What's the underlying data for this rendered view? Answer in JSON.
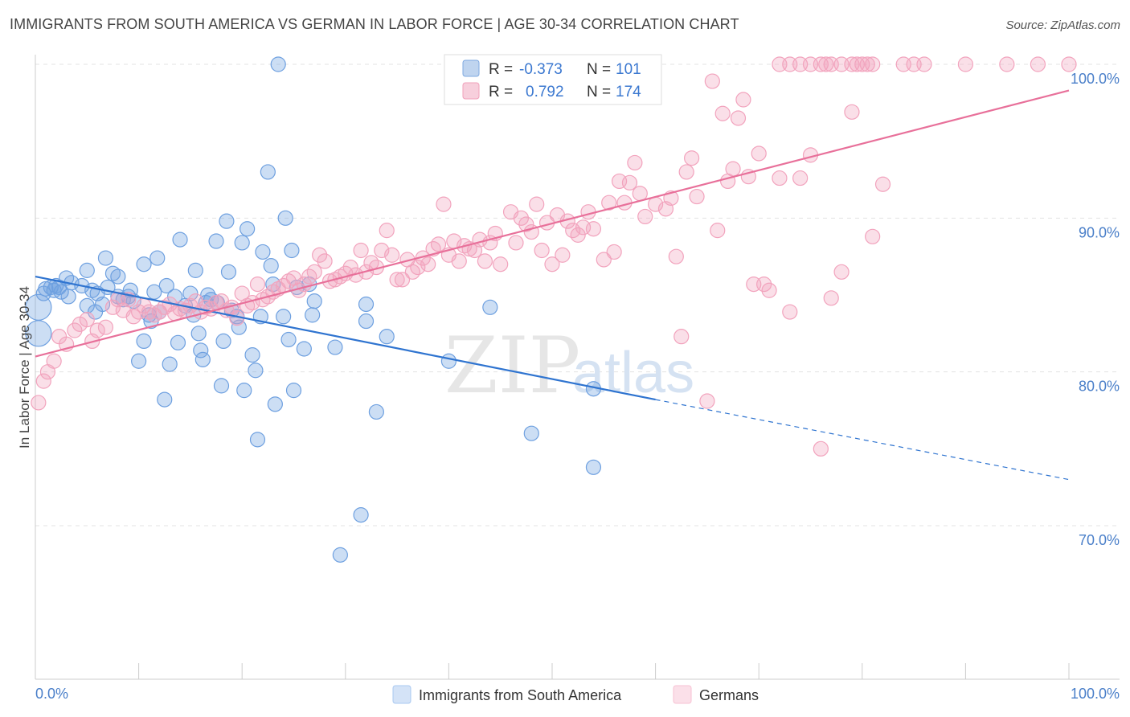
{
  "title": "IMMIGRANTS FROM SOUTH AMERICA VS GERMAN IN LABOR FORCE | AGE 30-34 CORRELATION CHART",
  "source": "Source: ZipAtlas.com",
  "watermark": {
    "zip": "ZIP",
    "atlas": "atlas"
  },
  "legend": {
    "rows": [
      {
        "r_label": "R =",
        "r_value": "-0.373",
        "n_label": "N =",
        "n_value": "101",
        "color": "#7fa9e0"
      },
      {
        "r_label": "R =",
        "r_value": "0.792",
        "n_label": "N =",
        "n_value": "174",
        "color": "#f0a0ba"
      }
    ]
  },
  "chart_data": {
    "type": "scatter",
    "ylabel": "In Labor Force | Age 30-34",
    "xlim": [
      0,
      100
    ],
    "ylim": [
      60,
      102
    ],
    "x_tick_labels": {
      "left": "0.0%",
      "right": "100.0%"
    },
    "y_ticks": [
      {
        "value": 100,
        "label": "100.0%"
      },
      {
        "value": 90,
        "label": "90.0%"
      },
      {
        "value": 80,
        "label": "80.0%"
      },
      {
        "value": 70,
        "label": "70.0%"
      }
    ],
    "grid": true,
    "series": [
      {
        "name": "Immigrants from South America",
        "color": "#6ea0e0",
        "line_color": "#2f74d0",
        "trend": {
          "x0": 0,
          "y0": 86.2,
          "x1": 60,
          "y1": 78.2,
          "dash_to_x": 100,
          "dash_to_y": 73.0
        },
        "points": [
          [
            0.3,
            84.2
          ],
          [
            0.3,
            82.5
          ],
          [
            0.8,
            85.1
          ],
          [
            1.0,
            85.4
          ],
          [
            1.5,
            85.5
          ],
          [
            1.8,
            85.3
          ],
          [
            2.0,
            85.6
          ],
          [
            2.3,
            85.5
          ],
          [
            2.5,
            85.2
          ],
          [
            3,
            86.1
          ],
          [
            3.2,
            84.9
          ],
          [
            3.5,
            85.8
          ],
          [
            4.5,
            85.6
          ],
          [
            5,
            86.6
          ],
          [
            5,
            84.3
          ],
          [
            5.5,
            85.3
          ],
          [
            5.8,
            83.9
          ],
          [
            6,
            85.1
          ],
          [
            6.5,
            84.4
          ],
          [
            6.8,
            87.4
          ],
          [
            7,
            85.5
          ],
          [
            7.5,
            86.4
          ],
          [
            8,
            86.2
          ],
          [
            8,
            84.9
          ],
          [
            8.5,
            84.7
          ],
          [
            9,
            84.9
          ],
          [
            9.2,
            85.3
          ],
          [
            9.5,
            84.6
          ],
          [
            10,
            80.7
          ],
          [
            10.5,
            82.0
          ],
          [
            10.5,
            87.0
          ],
          [
            11,
            83.7
          ],
          [
            11.2,
            83.3
          ],
          [
            11.5,
            85.2
          ],
          [
            11.8,
            87.4
          ],
          [
            12,
            83.9
          ],
          [
            12.5,
            78.2
          ],
          [
            12.7,
            85.6
          ],
          [
            13,
            80.5
          ],
          [
            13.5,
            84.9
          ],
          [
            13.8,
            81.9
          ],
          [
            14,
            88.6
          ],
          [
            14.5,
            84.3
          ],
          [
            15,
            85.1
          ],
          [
            15.3,
            83.7
          ],
          [
            15.5,
            86.6
          ],
          [
            15.8,
            82.5
          ],
          [
            16,
            81.4
          ],
          [
            16.2,
            80.8
          ],
          [
            16.5,
            84.5
          ],
          [
            16.7,
            85.0
          ],
          [
            17,
            84.7
          ],
          [
            17.5,
            88.5
          ],
          [
            17.6,
            84.5
          ],
          [
            18,
            79.1
          ],
          [
            18.2,
            82.0
          ],
          [
            18.5,
            89.8
          ],
          [
            18.7,
            86.5
          ],
          [
            19,
            84.0
          ],
          [
            19.5,
            83.6
          ],
          [
            19.7,
            82.9
          ],
          [
            20,
            88.4
          ],
          [
            20.2,
            78.8
          ],
          [
            20.5,
            89.3
          ],
          [
            21,
            81.1
          ],
          [
            21.3,
            80.1
          ],
          [
            21.5,
            75.6
          ],
          [
            21.8,
            83.6
          ],
          [
            22,
            87.8
          ],
          [
            22.5,
            93.0
          ],
          [
            22.8,
            86.9
          ],
          [
            23,
            85.7
          ],
          [
            23.2,
            77.9
          ],
          [
            23.5,
            100.0
          ],
          [
            24,
            83.6
          ],
          [
            24.2,
            90.0
          ],
          [
            24.5,
            82.1
          ],
          [
            24.8,
            87.9
          ],
          [
            25,
            78.8
          ],
          [
            25.3,
            85.5
          ],
          [
            26,
            81.5
          ],
          [
            26.5,
            85.7
          ],
          [
            26.8,
            83.7
          ],
          [
            27,
            84.6
          ],
          [
            29,
            81.6
          ],
          [
            29.5,
            68.1
          ],
          [
            31.5,
            70.7
          ],
          [
            32,
            83.3
          ],
          [
            32,
            84.4
          ],
          [
            33,
            77.4
          ],
          [
            34,
            82.3
          ],
          [
            40,
            80.7
          ],
          [
            44,
            84.2
          ],
          [
            48,
            76.0
          ],
          [
            54,
            73.8
          ],
          [
            54,
            78.9
          ]
        ]
      },
      {
        "name": "Germans",
        "color": "#f2a3bd",
        "line_color": "#e8709a",
        "trend": {
          "x0": 0,
          "y0": 81.0,
          "x1": 100,
          "y1": 98.3
        },
        "points": [
          [
            0.3,
            78.0
          ],
          [
            0.8,
            79.4
          ],
          [
            1.2,
            80.0
          ],
          [
            1.8,
            80.7
          ],
          [
            2.3,
            82.3
          ],
          [
            3,
            81.8
          ],
          [
            3.8,
            82.7
          ],
          [
            4.3,
            83.1
          ],
          [
            5,
            83.4
          ],
          [
            5.5,
            82.0
          ],
          [
            6,
            82.7
          ],
          [
            6.8,
            82.9
          ],
          [
            7.5,
            84.2
          ],
          [
            8,
            84.7
          ],
          [
            8.5,
            84.0
          ],
          [
            9,
            84.7
          ],
          [
            9.5,
            83.6
          ],
          [
            10,
            83.9
          ],
          [
            10.5,
            84.3
          ],
          [
            11,
            83.9
          ],
          [
            11.5,
            83.7
          ],
          [
            12,
            83.9
          ],
          [
            12.5,
            84.2
          ],
          [
            13,
            84.4
          ],
          [
            13.5,
            83.8
          ],
          [
            14,
            84.1
          ],
          [
            14.5,
            84.0
          ],
          [
            15,
            84.3
          ],
          [
            15.5,
            84.6
          ],
          [
            16,
            83.9
          ],
          [
            16.5,
            84.2
          ],
          [
            17,
            84.1
          ],
          [
            17.5,
            84.5
          ],
          [
            18,
            84.6
          ],
          [
            18.5,
            84.0
          ],
          [
            19,
            84.2
          ],
          [
            19.5,
            83.5
          ],
          [
            20,
            85.1
          ],
          [
            20.5,
            84.3
          ],
          [
            21,
            84.5
          ],
          [
            21.5,
            85.7
          ],
          [
            22,
            84.7
          ],
          [
            22.5,
            84.9
          ],
          [
            23,
            85.2
          ],
          [
            23.5,
            85.4
          ],
          [
            24,
            85.6
          ],
          [
            24.5,
            85.9
          ],
          [
            25,
            86.1
          ],
          [
            25.5,
            85.3
          ],
          [
            26,
            85.7
          ],
          [
            26.5,
            86.2
          ],
          [
            27,
            86.5
          ],
          [
            27.5,
            87.6
          ],
          [
            28,
            87.2
          ],
          [
            28.5,
            85.9
          ],
          [
            29,
            86.0
          ],
          [
            29.5,
            86.2
          ],
          [
            30,
            86.4
          ],
          [
            30.5,
            86.8
          ],
          [
            31,
            86.3
          ],
          [
            31.5,
            87.9
          ],
          [
            32,
            86.5
          ],
          [
            32.5,
            87.1
          ],
          [
            33,
            86.8
          ],
          [
            33.5,
            87.9
          ],
          [
            34,
            89.2
          ],
          [
            34.5,
            87.6
          ],
          [
            35,
            86.0
          ],
          [
            35.5,
            86.0
          ],
          [
            36,
            87.3
          ],
          [
            36.5,
            86.5
          ],
          [
            37,
            86.8
          ],
          [
            37.5,
            87.4
          ],
          [
            38,
            87.0
          ],
          [
            38.5,
            88.0
          ],
          [
            39,
            88.3
          ],
          [
            39.5,
            90.9
          ],
          [
            40,
            87.6
          ],
          [
            40.5,
            88.5
          ],
          [
            41,
            87.2
          ],
          [
            41.5,
            88.2
          ],
          [
            42,
            88.0
          ],
          [
            42.5,
            87.9
          ],
          [
            43,
            88.6
          ],
          [
            43.5,
            87.2
          ],
          [
            44,
            88.4
          ],
          [
            44.5,
            89.0
          ],
          [
            45,
            87.0
          ],
          [
            46,
            90.4
          ],
          [
            46.5,
            88.4
          ],
          [
            47,
            90.0
          ],
          [
            47.5,
            89.6
          ],
          [
            48,
            89.1
          ],
          [
            48.5,
            90.9
          ],
          [
            49,
            87.9
          ],
          [
            49.5,
            89.7
          ],
          [
            50,
            87.0
          ],
          [
            50.5,
            90.2
          ],
          [
            51,
            87.6
          ],
          [
            51.5,
            89.8
          ],
          [
            52,
            89.2
          ],
          [
            52.5,
            88.9
          ],
          [
            53,
            89.4
          ],
          [
            53.5,
            90.4
          ],
          [
            54,
            89.3
          ],
          [
            55,
            87.3
          ],
          [
            55.5,
            91.0
          ],
          [
            56,
            87.8
          ],
          [
            56.5,
            92.4
          ],
          [
            57,
            91.0
          ],
          [
            57.5,
            92.3
          ],
          [
            58,
            93.6
          ],
          [
            58.5,
            91.6
          ],
          [
            59,
            90.1
          ],
          [
            60,
            90.9
          ],
          [
            61,
            90.6
          ],
          [
            61.5,
            91.3
          ],
          [
            62,
            87.5
          ],
          [
            62.5,
            82.3
          ],
          [
            63,
            93.0
          ],
          [
            63.5,
            93.9
          ],
          [
            64,
            91.4
          ],
          [
            65,
            78.1
          ],
          [
            65.5,
            98.9
          ],
          [
            66,
            89.2
          ],
          [
            66.5,
            96.8
          ],
          [
            67,
            92.4
          ],
          [
            67.5,
            93.2
          ],
          [
            68,
            96.5
          ],
          [
            68.5,
            97.7
          ],
          [
            69,
            92.7
          ],
          [
            69.5,
            85.7
          ],
          [
            70,
            94.2
          ],
          [
            70.5,
            85.7
          ],
          [
            71,
            85.3
          ],
          [
            72,
            92.6
          ],
          [
            73,
            83.9
          ],
          [
            74,
            92.6
          ],
          [
            75,
            94.1
          ],
          [
            76,
            75.0
          ],
          [
            77,
            84.8
          ],
          [
            78,
            86.5
          ],
          [
            79,
            96.9
          ],
          [
            80,
            100.0
          ],
          [
            81,
            88.8
          ],
          [
            82,
            92.2
          ],
          [
            72,
            100.0
          ],
          [
            73,
            100.0
          ],
          [
            74,
            100.0
          ],
          [
            75,
            100.0
          ],
          [
            76,
            100.0
          ],
          [
            76.5,
            100.0
          ],
          [
            77,
            100.0
          ],
          [
            78,
            100.0
          ],
          [
            79,
            100.0
          ],
          [
            79.5,
            100.0
          ],
          [
            80.5,
            100.0
          ],
          [
            81,
            100.0
          ],
          [
            84,
            100.0
          ],
          [
            85,
            100.0
          ],
          [
            86,
            100.0
          ],
          [
            90,
            100.0
          ],
          [
            94,
            100.0
          ],
          [
            97,
            100.0
          ],
          [
            100,
            100.0
          ]
        ]
      }
    ]
  },
  "bottom_legend": [
    {
      "label": "Immigrants from South America",
      "color": "#a9c8f0"
    },
    {
      "label": "Germans",
      "color": "#f7c2d3"
    }
  ]
}
